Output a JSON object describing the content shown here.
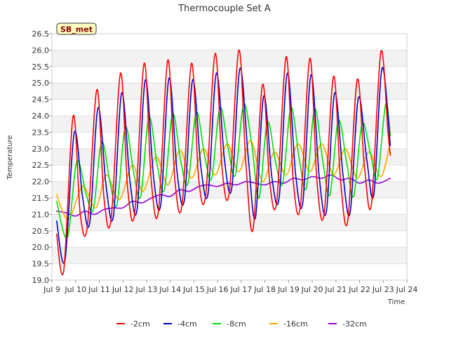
{
  "chart_data": {
    "type": "line",
    "title": "Thermocouple Set A",
    "xlabel": "Time",
    "ylabel": "Temperature",
    "badge": "SB_met",
    "xlim": [
      9.0,
      24.0
    ],
    "ylim": [
      19.0,
      26.5
    ],
    "x_ticks": [
      {
        "value": 9,
        "label": "Jul 9"
      },
      {
        "value": 10,
        "label": "Jul 10"
      },
      {
        "value": 11,
        "label": "Jul 11"
      },
      {
        "value": 12,
        "label": "Jul 12"
      },
      {
        "value": 13,
        "label": "Jul 13"
      },
      {
        "value": 14,
        "label": "Jul 14"
      },
      {
        "value": 15,
        "label": "Jul 15"
      },
      {
        "value": 16,
        "label": "Jul 16"
      },
      {
        "value": 17,
        "label": "Jul 17"
      },
      {
        "value": 18,
        "label": "Jul 18"
      },
      {
        "value": 19,
        "label": "Jul 19"
      },
      {
        "value": 20,
        "label": "Jul 20"
      },
      {
        "value": 21,
        "label": "Jul 21"
      },
      {
        "value": 22,
        "label": "Jul 22"
      },
      {
        "value": 23,
        "label": "Jul 23"
      },
      {
        "value": 24,
        "label": "Jul 24"
      }
    ],
    "y_ticks": [
      "19.0",
      "19.5",
      "20.0",
      "20.5",
      "21.0",
      "21.5",
      "22.0",
      "22.5",
      "23.0",
      "23.5",
      "24.0",
      "24.5",
      "25.0",
      "25.5",
      "26.0",
      "26.5"
    ],
    "series": [
      {
        "name": "-2cm",
        "color": "#ff0000",
        "x": [
          9.2,
          9.5,
          9.9,
          10.2,
          10.5,
          10.9,
          11.2,
          11.5,
          11.9,
          12.2,
          12.5,
          12.9,
          13.2,
          13.5,
          13.9,
          14.2,
          14.5,
          14.9,
          15.2,
          15.5,
          15.9,
          16.2,
          16.5,
          16.9,
          17.2,
          17.5,
          17.9,
          18.2,
          18.5,
          18.9,
          19.2,
          19.5,
          19.9,
          20.2,
          20.5,
          20.9,
          21.2,
          21.5,
          21.9,
          22.2,
          22.5,
          22.9,
          23.2,
          23.3
        ],
        "y": [
          20.4,
          19.3,
          24.0,
          21.0,
          20.65,
          24.8,
          21.5,
          20.85,
          25.3,
          21.8,
          21.05,
          25.6,
          22.0,
          21.1,
          25.7,
          22.0,
          21.3,
          25.6,
          22.1,
          21.6,
          25.9,
          22.3,
          21.7,
          26.0,
          22.5,
          20.55,
          24.95,
          22.0,
          21.4,
          25.8,
          22.0,
          21.25,
          25.75,
          22.0,
          21.0,
          25.2,
          22.0,
          20.8,
          25.1,
          22.5,
          21.3,
          25.95,
          23.5,
          22.8
        ]
      },
      {
        "name": "-4cm",
        "color": "#0000cc",
        "x": [
          9.2,
          9.55,
          9.95,
          10.3,
          10.6,
          10.95,
          11.3,
          11.6,
          11.95,
          12.3,
          12.6,
          12.95,
          13.3,
          13.6,
          13.95,
          14.3,
          14.6,
          14.95,
          15.3,
          15.6,
          15.95,
          16.3,
          16.6,
          16.95,
          17.3,
          17.6,
          17.95,
          18.3,
          18.6,
          18.95,
          19.3,
          19.6,
          19.95,
          20.3,
          20.6,
          20.95,
          21.3,
          21.6,
          21.95,
          22.3,
          22.6,
          22.95,
          23.3
        ],
        "y": [
          20.8,
          19.6,
          23.5,
          21.5,
          20.75,
          24.25,
          21.8,
          20.95,
          24.7,
          22.0,
          21.15,
          25.1,
          22.1,
          21.3,
          25.15,
          22.2,
          21.45,
          25.1,
          22.4,
          21.65,
          25.3,
          22.6,
          21.8,
          25.45,
          22.7,
          20.9,
          24.6,
          22.1,
          21.5,
          25.3,
          22.2,
          21.35,
          25.25,
          22.1,
          21.1,
          24.7,
          22.2,
          21.05,
          24.55,
          22.7,
          21.6,
          25.45,
          23.1
        ]
      },
      {
        "name": "-8cm",
        "color": "#00e000",
        "x": [
          9.2,
          9.65,
          10.05,
          10.45,
          10.75,
          11.1,
          11.45,
          11.75,
          12.1,
          12.45,
          12.75,
          13.1,
          13.45,
          13.75,
          14.1,
          14.45,
          14.75,
          15.1,
          15.45,
          15.75,
          16.1,
          16.45,
          16.75,
          17.1,
          17.45,
          17.75,
          18.1,
          18.45,
          18.75,
          19.1,
          19.45,
          19.75,
          20.1,
          20.45,
          20.75,
          21.1,
          21.45,
          21.75,
          22.1,
          22.45,
          22.75,
          23.1,
          23.3
        ],
        "y": [
          21.4,
          20.3,
          22.6,
          21.6,
          21.15,
          23.2,
          22.0,
          21.3,
          23.65,
          22.3,
          21.55,
          23.95,
          22.5,
          21.75,
          24.05,
          22.6,
          21.95,
          24.1,
          22.8,
          22.1,
          24.25,
          23.0,
          22.2,
          24.35,
          23.1,
          21.5,
          23.8,
          22.6,
          21.95,
          24.25,
          22.7,
          21.8,
          24.2,
          22.6,
          21.6,
          23.85,
          22.6,
          21.55,
          23.75,
          22.9,
          22.1,
          24.35,
          23.4
        ]
      },
      {
        "name": "-16cm",
        "color": "#ffa500",
        "x": [
          9.2,
          9.7,
          10.3,
          10.85,
          11.3,
          11.85,
          12.4,
          12.85,
          13.4,
          13.9,
          14.4,
          14.9,
          15.4,
          15.9,
          16.4,
          16.9,
          17.4,
          17.9,
          18.4,
          18.9,
          19.4,
          19.9,
          20.4,
          20.9,
          21.4,
          21.9,
          22.4,
          22.9,
          23.3
        ],
        "y": [
          21.6,
          20.85,
          21.85,
          21.2,
          22.2,
          21.45,
          22.5,
          21.7,
          22.75,
          21.9,
          22.95,
          22.1,
          23.0,
          22.2,
          23.15,
          22.3,
          23.25,
          22.0,
          22.9,
          22.2,
          23.15,
          22.3,
          23.15,
          22.2,
          23.0,
          22.1,
          22.9,
          22.15,
          23.2
        ]
      },
      {
        "name": "-32cm",
        "color": "#9400d3",
        "x": [
          9.2,
          9.6,
          10.0,
          10.4,
          10.8,
          11.2,
          11.6,
          12.0,
          12.4,
          12.8,
          13.2,
          13.6,
          14.0,
          14.4,
          14.8,
          15.2,
          15.6,
          16.0,
          16.4,
          16.8,
          17.2,
          17.6,
          18.0,
          18.4,
          18.8,
          19.2,
          19.6,
          20.0,
          20.4,
          20.8,
          21.2,
          21.6,
          22.0,
          22.4,
          22.8,
          23.3
        ],
        "y": [
          21.1,
          21.05,
          20.95,
          21.1,
          21.0,
          21.15,
          21.2,
          21.2,
          21.4,
          21.35,
          21.5,
          21.6,
          21.55,
          21.75,
          21.7,
          21.85,
          21.9,
          21.85,
          21.95,
          21.9,
          22.0,
          21.95,
          21.9,
          22.0,
          21.95,
          22.1,
          22.05,
          22.15,
          22.1,
          22.2,
          22.05,
          22.1,
          21.95,
          22.05,
          21.95,
          22.1
        ]
      }
    ]
  }
}
